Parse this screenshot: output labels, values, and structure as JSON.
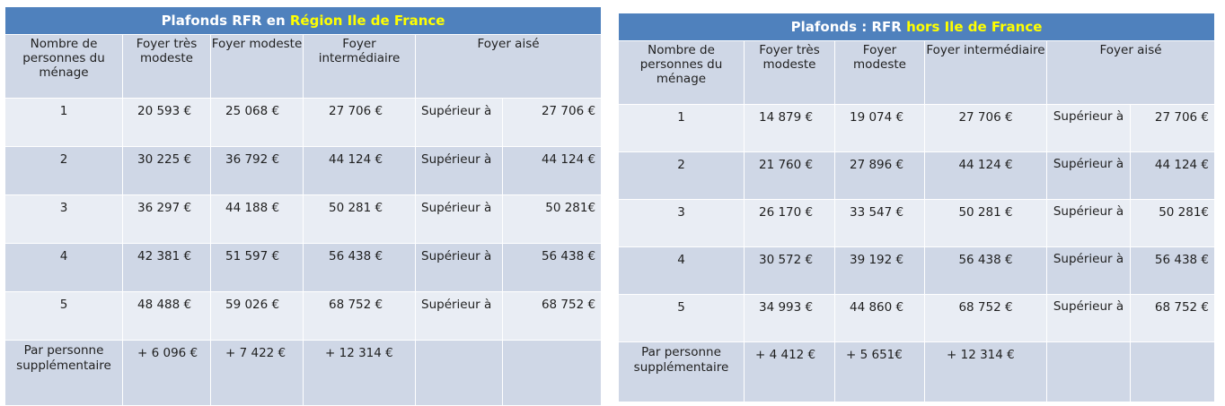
{
  "tables": [
    {
      "title_pre": "Plafonds RFR en ",
      "title_hl": "Région Ile de France",
      "headers": {
        "c1": "Nombre de personnes du ménage",
        "c2": "Foyer très modeste",
        "c3": "Foyer modeste",
        "c4": "Foyer intermédiaire",
        "c5": "Foyer aisé"
      },
      "rows": [
        {
          "n": "1",
          "tm": "20 593 €",
          "m": "25 068 €",
          "i": "27 706 €",
          "s": "Supérieur à",
          "a": "27 706 €"
        },
        {
          "n": "2",
          "tm": "30 225 €",
          "m": "36 792 €",
          "i": "44 124 €",
          "s": "Supérieur à",
          "a": "44 124 €"
        },
        {
          "n": "3",
          "tm": "36 297 €",
          "m": "44 188 €",
          "i": "50 281 €",
          "s": "Supérieur à",
          "a": "50 281€"
        },
        {
          "n": "4",
          "tm": "42 381 €",
          "m": "51 597 €",
          "i": "56 438 €",
          "s": "Supérieur à",
          "a": "56 438 €"
        },
        {
          "n": "5",
          "tm": "48 488 €",
          "m": "59 026 €",
          "i": "68 752 €",
          "s": "Supérieur à",
          "a": "68 752 €"
        }
      ],
      "extra": {
        "label": "Par personne supplémentaire",
        "tm": "+ 6 096 €",
        "m": "+ 7 422 €",
        "i": "+ 12 314 €"
      }
    },
    {
      "title_pre": "Plafonds : RFR ",
      "title_hl": "hors Ile de France",
      "headers": {
        "c1": "Nombre de personnes du ménage",
        "c2": "Foyer très modeste",
        "c3": "Foyer modeste",
        "c4": "Foyer intermédiaire",
        "c5": "Foyer aisé"
      },
      "rows": [
        {
          "n": "1",
          "tm": "14 879 €",
          "m": "19 074 €",
          "i": "27 706 €",
          "s": "Supérieur à",
          "a": "27 706 €"
        },
        {
          "n": "2",
          "tm": "21 760 €",
          "m": "27 896 €",
          "i": "44 124 €",
          "s": "Supérieur à",
          "a": "44 124 €"
        },
        {
          "n": "3",
          "tm": "26 170 €",
          "m": "33 547 €",
          "i": "50 281 €",
          "s": "Supérieur à",
          "a": "50 281€"
        },
        {
          "n": "4",
          "tm": "30 572 €",
          "m": "39 192 €",
          "i": "56 438 €",
          "s": "Supérieur à",
          "a": "56 438 €"
        },
        {
          "n": "5",
          "tm": "34 993 €",
          "m": "44 860 €",
          "i": "68 752 €",
          "s": "Supérieur à",
          "a": "68 752 €"
        }
      ],
      "extra": {
        "label": "Par personne supplémentaire",
        "tm": "+ 4 412 €",
        "m": "+ 5 651€",
        "i": "+ 12 314 €"
      }
    }
  ]
}
